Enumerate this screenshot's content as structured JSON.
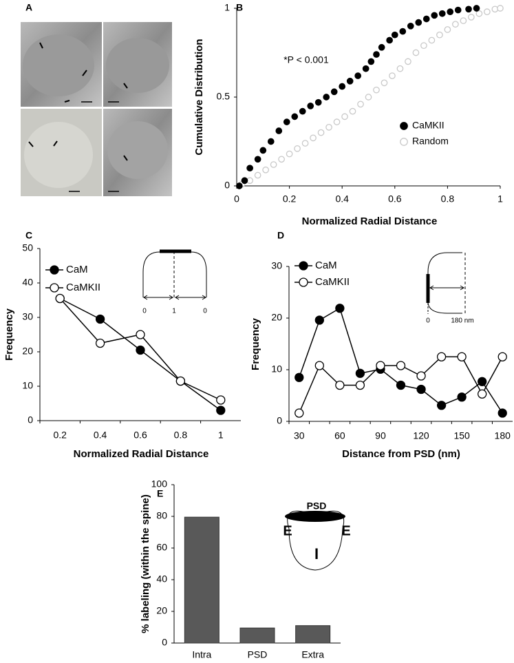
{
  "micrograph": {
    "label": "A"
  },
  "chart_data": [
    {
      "type": "scatter",
      "label": "B",
      "x_label": "Normalized Radial Distance",
      "y_label": "Cumulative Distribution",
      "annotation": "*P < 0.001",
      "xlim": [
        0,
        1
      ],
      "xticks": [
        0,
        0.2,
        0.4,
        0.6,
        0.8,
        1
      ],
      "ylim": [
        0,
        1
      ],
      "yticks": [
        0,
        0.5,
        1
      ],
      "series": [
        {
          "name": "CaMKII",
          "color": "#000000",
          "filled": true,
          "x": [
            0.01,
            0.03,
            0.05,
            0.08,
            0.1,
            0.13,
            0.16,
            0.19,
            0.22,
            0.25,
            0.28,
            0.31,
            0.34,
            0.37,
            0.4,
            0.43,
            0.46,
            0.49,
            0.51,
            0.53,
            0.55,
            0.58,
            0.6,
            0.63,
            0.66,
            0.69,
            0.72,
            0.75,
            0.78,
            0.81,
            0.84,
            0.88,
            0.91
          ],
          "values": [
            0,
            0.03,
            0.1,
            0.15,
            0.2,
            0.25,
            0.31,
            0.36,
            0.39,
            0.42,
            0.45,
            0.47,
            0.5,
            0.53,
            0.56,
            0.59,
            0.62,
            0.66,
            0.7,
            0.74,
            0.78,
            0.82,
            0.85,
            0.87,
            0.9,
            0.92,
            0.94,
            0.96,
            0.97,
            0.98,
            0.99,
            0.995,
            1
          ]
        },
        {
          "name": "Random",
          "color": "#c8c8c8",
          "filled": false,
          "x": [
            0.02,
            0.05,
            0.08,
            0.11,
            0.14,
            0.17,
            0.2,
            0.23,
            0.26,
            0.29,
            0.32,
            0.35,
            0.38,
            0.41,
            0.44,
            0.47,
            0.5,
            0.53,
            0.56,
            0.59,
            0.62,
            0.65,
            0.68,
            0.71,
            0.74,
            0.77,
            0.8,
            0.83,
            0.86,
            0.89,
            0.92,
            0.95,
            0.98,
            1
          ],
          "values": [
            0.01,
            0.03,
            0.06,
            0.09,
            0.12,
            0.15,
            0.18,
            0.21,
            0.24,
            0.27,
            0.3,
            0.33,
            0.36,
            0.39,
            0.42,
            0.46,
            0.5,
            0.54,
            0.58,
            0.62,
            0.66,
            0.7,
            0.75,
            0.79,
            0.82,
            0.85,
            0.88,
            0.91,
            0.93,
            0.95,
            0.97,
            0.98,
            0.995,
            1
          ]
        }
      ]
    },
    {
      "type": "line",
      "label": "C",
      "x_label": "Normalized Radial Distance",
      "y_label": "Frequency",
      "inset_labels": [
        "0",
        "1",
        "0"
      ],
      "categories": [
        "0.2",
        "0.4",
        "0.6",
        "0.8",
        "1"
      ],
      "ylim": [
        0,
        50
      ],
      "yticks": [
        0,
        10,
        20,
        30,
        40,
        50
      ],
      "series": [
        {
          "name": "CaM",
          "color": "#000000",
          "filled": true,
          "values": [
            35.5,
            29.5,
            20.5,
            11.5,
            3
          ]
        },
        {
          "name": "CaMKII",
          "color": "#000000",
          "filled": false,
          "values": [
            35.5,
            22.5,
            25,
            11.5,
            6
          ]
        }
      ]
    },
    {
      "type": "line",
      "label": "D",
      "x_label": "Distance from PSD (nm)",
      "y_label": "Frequency",
      "inset_labels": [
        "0",
        "180 nm"
      ],
      "categories": [
        "30",
        null,
        "60",
        null,
        "90",
        null,
        "120",
        null,
        "150",
        null,
        "180"
      ],
      "ylim": [
        0,
        30
      ],
      "yticks": [
        0,
        10,
        20,
        30
      ],
      "series": [
        {
          "name": "CaM",
          "color": "#000000",
          "filled": true,
          "values": [
            8.5,
            19.6,
            21.9,
            9.3,
            10.1,
            7,
            6.2,
            3.1,
            4.7,
            7.7,
            1.6
          ]
        },
        {
          "name": "CaMKII",
          "color": "#000000",
          "filled": false,
          "values": [
            1.6,
            10.8,
            7,
            7,
            10.8,
            10.8,
            8.8,
            12.5,
            12.5,
            5.3,
            12.5
          ]
        }
      ]
    },
    {
      "type": "bar",
      "label": "E",
      "y_label": "% labeling (within the spine)",
      "inset_labels": [
        "PSD",
        "E",
        "I",
        "E"
      ],
      "categories": [
        "Intra",
        "PSD",
        "Extra"
      ],
      "values": [
        79.5,
        9.5,
        11
      ],
      "color": "#595959",
      "ylim": [
        0,
        100
      ],
      "yticks": [
        0,
        20,
        40,
        60,
        80,
        100
      ]
    }
  ]
}
